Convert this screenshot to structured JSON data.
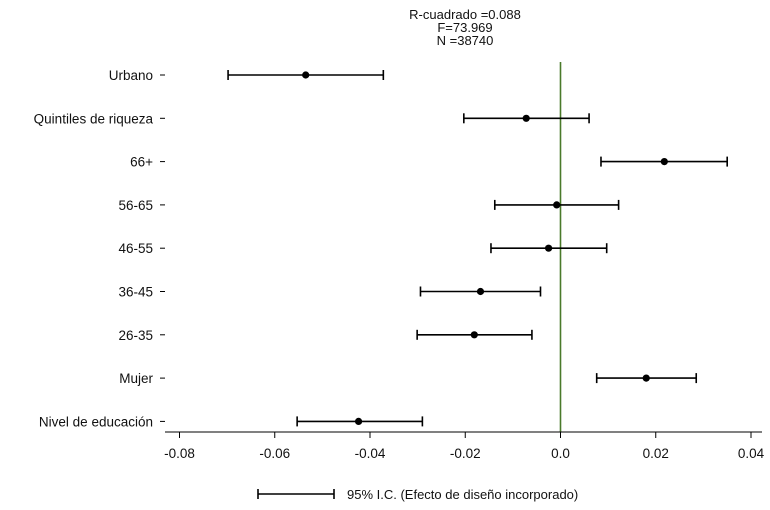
{
  "chart_data": {
    "type": "scatter",
    "subtype": "coefficient-plot-with-confidence-intervals",
    "title_lines": [
      "R-cuadrado =0.088",
      "F=73.969",
      "N =38740"
    ],
    "xlim": [
      -0.082,
      0.043
    ],
    "x_ticks": [
      -0.08,
      -0.06,
      -0.04,
      -0.02,
      0.0,
      0.02,
      0.04
    ],
    "x_tick_labels": [
      "-0.08",
      "-0.06",
      "-0.04",
      "-0.02",
      "0.0",
      "0.02",
      "0.04"
    ],
    "reference_line_x": 0,
    "reference_line_color": "#4a7a2a",
    "marker_color": "#000000",
    "items": [
      {
        "label": "Urbano",
        "estimate": -0.0535,
        "lower": -0.0698,
        "upper": -0.0372
      },
      {
        "label": "Quintiles de riqueza",
        "estimate": -0.0072,
        "lower": -0.0203,
        "upper": 0.006
      },
      {
        "label": "66+",
        "estimate": 0.0218,
        "lower": 0.0085,
        "upper": 0.035
      },
      {
        "label": "56-65",
        "estimate": -0.0008,
        "lower": -0.0138,
        "upper": 0.0122
      },
      {
        "label": "46-55",
        "estimate": -0.0025,
        "lower": -0.0146,
        "upper": 0.0097
      },
      {
        "label": "36-45",
        "estimate": -0.0168,
        "lower": -0.0294,
        "upper": -0.0042
      },
      {
        "label": "26-35",
        "estimate": -0.0181,
        "lower": -0.0301,
        "upper": -0.006
      },
      {
        "label": "Mujer",
        "estimate": 0.018,
        "lower": 0.0076,
        "upper": 0.0285
      },
      {
        "label": "Nivel de educación",
        "estimate": -0.0424,
        "lower": -0.0553,
        "upper": -0.029
      }
    ],
    "legend": {
      "label": "95% I.C. (Efecto de diseño incorporado)",
      "position": "bottom-center"
    }
  }
}
